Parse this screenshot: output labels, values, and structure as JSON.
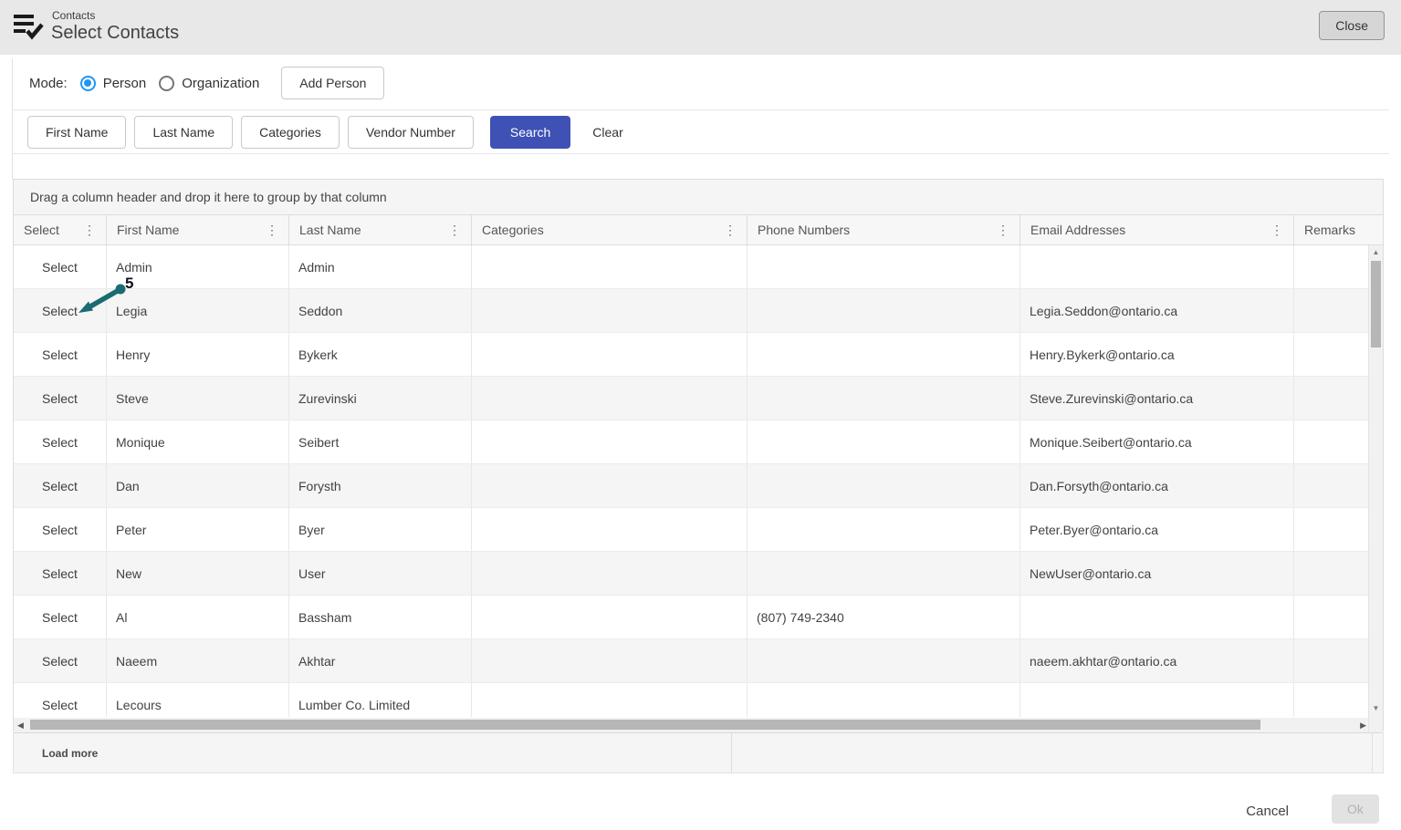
{
  "header": {
    "breadcrumb": "Contacts",
    "title": "Select Contacts",
    "close_label": "Close"
  },
  "mode": {
    "label": "Mode:",
    "options": [
      {
        "label": "Person",
        "selected": true
      },
      {
        "label": "Organization",
        "selected": false
      }
    ],
    "add_person_label": "Add Person"
  },
  "filters": {
    "field_buttons": [
      "First Name",
      "Last Name",
      "Categories",
      "Vendor Number"
    ],
    "search_label": "Search",
    "clear_label": "Clear"
  },
  "grid": {
    "group_hint": "Drag a column header and drop it here to group by that column",
    "columns": [
      {
        "label": "Select",
        "menu": true
      },
      {
        "label": "First Name",
        "menu": true
      },
      {
        "label": "Last Name",
        "menu": true
      },
      {
        "label": "Categories",
        "menu": true
      },
      {
        "label": "Phone Numbers",
        "menu": true
      },
      {
        "label": "Email Addresses",
        "menu": true
      },
      {
        "label": "Remarks",
        "menu": false
      }
    ],
    "rows": [
      {
        "select": "Select",
        "first_name": "Admin",
        "last_name": "Admin",
        "categories": "",
        "phone": "",
        "email": "",
        "remarks": ""
      },
      {
        "select": "Select",
        "first_name": "Legia",
        "last_name": "Seddon",
        "categories": "",
        "phone": "",
        "email": "Legia.Seddon@ontario.ca",
        "remarks": ""
      },
      {
        "select": "Select",
        "first_name": "Henry",
        "last_name": "Bykerk",
        "categories": "",
        "phone": "",
        "email": "Henry.Bykerk@ontario.ca",
        "remarks": ""
      },
      {
        "select": "Select",
        "first_name": "Steve",
        "last_name": "Zurevinski",
        "categories": "",
        "phone": "",
        "email": "Steve.Zurevinski@ontario.ca",
        "remarks": ""
      },
      {
        "select": "Select",
        "first_name": "Monique",
        "last_name": "Seibert",
        "categories": "",
        "phone": "",
        "email": "Monique.Seibert@ontario.ca",
        "remarks": ""
      },
      {
        "select": "Select",
        "first_name": "Dan",
        "last_name": "Forysth",
        "categories": "",
        "phone": "",
        "email": "Dan.Forsyth@ontario.ca",
        "remarks": ""
      },
      {
        "select": "Select",
        "first_name": "Peter",
        "last_name": "Byer",
        "categories": "",
        "phone": "",
        "email": "Peter.Byer@ontario.ca",
        "remarks": ""
      },
      {
        "select": "Select",
        "first_name": "New",
        "last_name": "User",
        "categories": "",
        "phone": "",
        "email": "NewUser@ontario.ca",
        "remarks": ""
      },
      {
        "select": "Select",
        "first_name": "Al",
        "last_name": "Bassham",
        "categories": "",
        "phone": "(807) 749-2340",
        "email": "",
        "remarks": ""
      },
      {
        "select": "Select",
        "first_name": "Naeem",
        "last_name": "Akhtar",
        "categories": "",
        "phone": "",
        "email": "naeem.akhtar@ontario.ca",
        "remarks": ""
      },
      {
        "select": "Select",
        "first_name": "Lecours",
        "last_name": "Lumber Co. Limited",
        "categories": "",
        "phone": "",
        "email": "",
        "remarks": ""
      }
    ]
  },
  "annotation": {
    "label": "5"
  },
  "pager": {
    "load_more_label": "Load more"
  },
  "actions": {
    "cancel_label": "Cancel",
    "ok_label": "Ok"
  },
  "colors": {
    "search_button": "#3f51b5",
    "radio_selected": "#2196f3",
    "annotation_arrow": "#1b6b72",
    "header_bar": "#e8e8e8"
  }
}
